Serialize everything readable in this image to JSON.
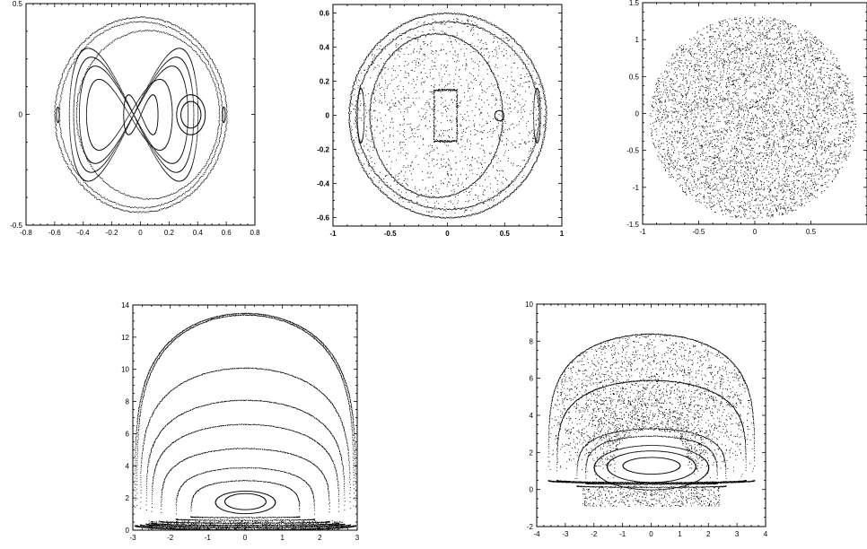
{
  "chart_data": [
    {
      "type": "scatter",
      "title": "",
      "xlabel": "",
      "ylabel": "",
      "xlim": [
        -0.8,
        0.8
      ],
      "ylim": [
        -0.5,
        0.5
      ],
      "xticks": [
        "-0.8",
        "-0.6",
        "-0.4",
        "-0.2",
        "0",
        "0.2",
        "0.4",
        "0.6",
        "0.8"
      ],
      "xtick_values": [
        -0.8,
        -0.6,
        -0.4,
        -0.2,
        0,
        0.2,
        0.4,
        0.6,
        0.8
      ],
      "yticks": [
        "-0.5",
        "0",
        "0.5"
      ],
      "ytick_values": [
        -0.5,
        0,
        0.5
      ],
      "grid": false,
      "color": "#000000",
      "series": [
        {
          "kind": "ellipse",
          "cx": 0.0,
          "cy": 0.0,
          "rx": 0.6,
          "ry": 0.44,
          "points": 600
        },
        {
          "kind": "ellipse",
          "cx": 0.0,
          "cy": 0.0,
          "rx": 0.57,
          "ry": 0.42,
          "points": 500
        },
        {
          "kind": "ellipse",
          "cx": 0.05,
          "cy": 0.0,
          "rx": 0.5,
          "ry": 0.38,
          "points": 450
        },
        {
          "kind": "lissajous",
          "cx": -0.05,
          "cy": 0.0,
          "ax": 0.45,
          "ay": 0.3,
          "points": 700
        },
        {
          "kind": "lissajous",
          "cx": -0.05,
          "cy": 0.0,
          "ax": 0.42,
          "ay": 0.26,
          "points": 650
        },
        {
          "kind": "lissajous",
          "cx": -0.05,
          "cy": 0.0,
          "ax": 0.38,
          "ay": 0.22,
          "points": 600
        },
        {
          "kind": "lissajous",
          "cx": -0.08,
          "cy": 0.0,
          "ax": 0.3,
          "ay": 0.16,
          "points": 500
        },
        {
          "kind": "lissajous",
          "cx": 0.0,
          "cy": 0.0,
          "ax": 0.12,
          "ay": 0.09,
          "points": 300
        },
        {
          "kind": "ellipse",
          "cx": 0.35,
          "cy": 0.0,
          "rx": 0.07,
          "ry": 0.06,
          "points": 250
        },
        {
          "kind": "ellipse",
          "cx": 0.35,
          "cy": 0.0,
          "rx": 0.1,
          "ry": 0.09,
          "points": 250
        },
        {
          "kind": "ellipse",
          "cx": -0.58,
          "cy": 0.0,
          "rx": 0.01,
          "ry": 0.035,
          "points": 60
        },
        {
          "kind": "ellipse",
          "cx": 0.58,
          "cy": 0.0,
          "rx": 0.01,
          "ry": 0.035,
          "points": 60
        }
      ]
    },
    {
      "type": "scatter",
      "title": "",
      "xlabel": "",
      "ylabel": "",
      "xlim": [
        -1,
        1
      ],
      "ylim": [
        -0.65,
        0.65
      ],
      "xticks": [
        "-1",
        "-0.5",
        "0",
        "0.5",
        "1"
      ],
      "xtick_values": [
        -1,
        -0.5,
        0,
        0.5,
        1
      ],
      "yticks": [
        "-0.6",
        "-0.4",
        "-0.2",
        "0",
        "0.2",
        "0.4",
        "0.6"
      ],
      "ytick_values": [
        -0.6,
        -0.4,
        -0.2,
        0,
        0.2,
        0.4,
        0.6
      ],
      "grid": false,
      "color": "#000000",
      "series": [
        {
          "kind": "ellipse",
          "cx": 0.0,
          "cy": 0.0,
          "rx": 0.86,
          "ry": 0.6,
          "points": 900
        },
        {
          "kind": "ellipse",
          "cx": 0.0,
          "cy": 0.0,
          "rx": 0.8,
          "ry": 0.55,
          "points": 700
        },
        {
          "kind": "ellipse",
          "cx": -0.1,
          "cy": 0.0,
          "rx": 0.58,
          "ry": 0.48,
          "points": 600
        },
        {
          "kind": "rect",
          "x0": -0.12,
          "x1": 0.08,
          "y0": -0.15,
          "y1": 0.15,
          "points": 300
        },
        {
          "kind": "ellipse",
          "cx": 0.45,
          "cy": 0.0,
          "rx": 0.04,
          "ry": 0.03,
          "points": 80
        },
        {
          "kind": "ellipse",
          "cx": -0.76,
          "cy": 0.0,
          "rx": 0.03,
          "ry": 0.16,
          "points": 150
        },
        {
          "kind": "ellipse",
          "cx": 0.78,
          "cy": 0.0,
          "rx": 0.03,
          "ry": 0.16,
          "points": 150
        },
        {
          "kind": "cloud",
          "cx": 0.0,
          "cy": 0.0,
          "rx": 0.85,
          "ry": 0.58,
          "points": 1600
        }
      ]
    },
    {
      "type": "scatter",
      "title": "",
      "xlabel": "",
      "ylabel": "",
      "xlim": [
        -1,
        1
      ],
      "ylim": [
        -1.5,
        1.5
      ],
      "xticks": [
        "-1",
        "-0.5",
        "0",
        "0.5"
      ],
      "xtick_values": [
        -1,
        -0.5,
        0,
        0.5
      ],
      "yticks": [
        "-1.5",
        "-1",
        "-0.5",
        "0",
        "0.5",
        "1",
        "1.5"
      ],
      "ytick_values": [
        -1.5,
        -1,
        -0.5,
        0,
        0.5,
        1,
        1.5
      ],
      "grid": false,
      "color": "#000000",
      "series": [
        {
          "kind": "cloud",
          "cx": -0.02,
          "cy": -0.05,
          "rx": 0.92,
          "ry": 1.38,
          "points": 9000
        }
      ]
    },
    {
      "type": "scatter",
      "title": "",
      "xlabel": "",
      "ylabel": "",
      "xlim": [
        -3,
        3
      ],
      "ylim": [
        0,
        14
      ],
      "xticks": [
        "-3",
        "-2",
        "-1",
        "0",
        "1",
        "2",
        "3"
      ],
      "xtick_values": [
        -3,
        -2,
        -1,
        0,
        1,
        2,
        3
      ],
      "yticks": [
        "0",
        "2",
        "4",
        "6",
        "8",
        "10",
        "12",
        "14"
      ],
      "ytick_values": [
        0,
        2,
        4,
        6,
        8,
        10,
        12,
        14
      ],
      "grid": false,
      "color": "#000000",
      "series": [
        {
          "kind": "dome",
          "cx": 0.0,
          "ybase": 0.3,
          "top": 13.5,
          "halfwidth": 2.95,
          "points": 1400
        },
        {
          "kind": "dome",
          "cx": 0.0,
          "ybase": 0.3,
          "top": 13.4,
          "halfwidth": 2.9,
          "points": 1200
        },
        {
          "kind": "dome",
          "cx": 0.0,
          "ybase": 0.35,
          "top": 10.1,
          "halfwidth": 2.8,
          "points": 900
        },
        {
          "kind": "dome",
          "cx": 0.0,
          "ybase": 0.4,
          "top": 8.1,
          "halfwidth": 2.65,
          "points": 800
        },
        {
          "kind": "dome",
          "cx": 0.0,
          "ybase": 0.45,
          "top": 6.6,
          "halfwidth": 2.5,
          "points": 700
        },
        {
          "kind": "dome",
          "cx": 0.0,
          "ybase": 0.55,
          "top": 5.1,
          "halfwidth": 2.25,
          "points": 600
        },
        {
          "kind": "dome",
          "cx": 0.0,
          "ybase": 0.7,
          "top": 3.9,
          "halfwidth": 1.85,
          "points": 450
        },
        {
          "kind": "dome",
          "cx": 0.0,
          "ybase": 0.85,
          "top": 3.1,
          "halfwidth": 1.45,
          "points": 400
        },
        {
          "kind": "ellipse",
          "cx": 0.0,
          "cy": 1.75,
          "rx": 0.8,
          "ry": 0.7,
          "points": 300
        },
        {
          "kind": "ellipse",
          "cx": 0.0,
          "cy": 1.8,
          "rx": 0.55,
          "ry": 0.5,
          "points": 260
        },
        {
          "kind": "band",
          "y0": 0.05,
          "y1": 0.6,
          "x0": -2.6,
          "x1": 2.6,
          "points": 700
        }
      ]
    },
    {
      "type": "scatter",
      "title": "",
      "xlabel": "",
      "ylabel": "",
      "xlim": [
        -4,
        4
      ],
      "ylim": [
        -2,
        10
      ],
      "xticks": [
        "-4",
        "-3",
        "-2",
        "-1",
        "0",
        "1",
        "2",
        "3",
        "4"
      ],
      "xtick_values": [
        -4,
        -3,
        -2,
        -1,
        0,
        1,
        2,
        3,
        4
      ],
      "yticks": [
        "-2",
        "0",
        "2",
        "4",
        "6",
        "8",
        "10"
      ],
      "ytick_values": [
        -2,
        0,
        2,
        4,
        6,
        8,
        10
      ],
      "grid": false,
      "color": "#000000",
      "series": [
        {
          "kind": "dome",
          "cx": 0.0,
          "ybase": 0.5,
          "top": 8.4,
          "halfwidth": 3.6,
          "points": 1100
        },
        {
          "kind": "dome",
          "cx": 0.0,
          "ybase": 0.5,
          "top": 5.9,
          "halfwidth": 3.3,
          "points": 1100
        },
        {
          "kind": "domecloud",
          "cx": 0.0,
          "ybase": 0.4,
          "top": 8.4,
          "halfwidth": 3.6,
          "inner": 0.35,
          "points": 2600
        },
        {
          "kind": "dome",
          "cx": 0.0,
          "ybase": 0.2,
          "top": 3.3,
          "halfwidth": 2.6,
          "points": 500
        },
        {
          "kind": "dome",
          "cx": 0.0,
          "ybase": 0.35,
          "top": 2.9,
          "halfwidth": 2.3,
          "points": 450
        },
        {
          "kind": "ellipse",
          "cx": 0.0,
          "cy": 1.2,
          "rx": 2.0,
          "ry": 1.2,
          "points": 400
        },
        {
          "kind": "ellipse",
          "cx": 0.0,
          "cy": 1.25,
          "rx": 1.55,
          "ry": 0.85,
          "points": 350
        },
        {
          "kind": "ellipse",
          "cx": 0.0,
          "cy": 1.3,
          "rx": 1.0,
          "ry": 0.45,
          "points": 250
        },
        {
          "kind": "band",
          "y0": -0.9,
          "y1": 0.2,
          "x0": -2.4,
          "x1": 2.4,
          "points": 500
        }
      ]
    }
  ]
}
